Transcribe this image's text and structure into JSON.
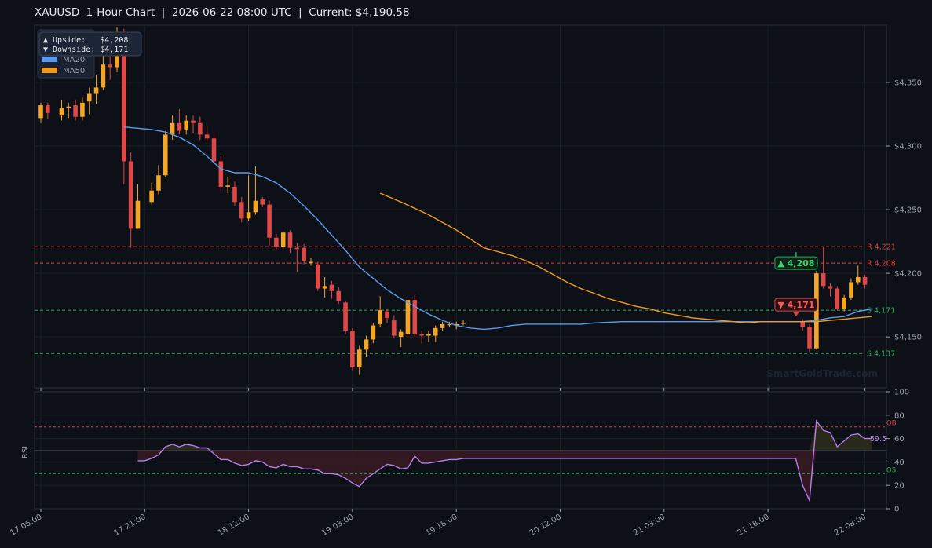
{
  "title": "XAUUSD  1-Hour Chart  |  2026-06-22 08:00 UTC  |  Current: $4,190.58",
  "watermark": "SmartGoldTrade.com",
  "colors": {
    "background": "#0d1017",
    "up": "#f5a623",
    "down": "#e04848",
    "ma20": "#5a9bf0",
    "ma50": "#f29a1c",
    "resistance": "#d9443f",
    "support": "#22b15a",
    "rsi": "#b77fe8"
  },
  "info_box": {
    "upside": "▲ Upside:   $4,208",
    "downside": "▼ Downside: $4,171"
  },
  "chart_data": [
    {
      "type": "candlestick",
      "y_unit": "USD",
      "ylim": [
        4110,
        4395
      ],
      "x_tick_labels": [
        "17 06:00",
        "17 21:00",
        "18 12:00",
        "19 03:00",
        "19 18:00",
        "20 12:00",
        "21 03:00",
        "21 18:00",
        "22 08:00"
      ],
      "y_ticks": [
        4150,
        4200,
        4250,
        4300,
        4350
      ],
      "y_tick_labels": [
        "$4,150",
        "$4,200",
        "$4,250",
        "$4,300",
        "$4,350"
      ],
      "legend": [
        {
          "name": "MA20",
          "color": "#5a9bf0"
        },
        {
          "name": "MA50",
          "color": "#f29a1c"
        }
      ],
      "legend_position": "top-left",
      "levels": [
        {
          "label": "R 4,221",
          "value": 4221,
          "kind": "resistance"
        },
        {
          "label": "R 4,208",
          "value": 4208,
          "kind": "resistance"
        },
        {
          "label": "S 4,171",
          "value": 4171,
          "kind": "support"
        },
        {
          "label": "S 4,137",
          "value": 4137,
          "kind": "support"
        }
      ],
      "target_up": {
        "label": "▲ 4,208",
        "value": 4208
      },
      "target_down": {
        "label": "▼ 4,171",
        "value": 4171
      },
      "candles": [
        {
          "i": 0,
          "o": 4322,
          "c": 4332,
          "h": 4334,
          "l": 4318
        },
        {
          "i": 1,
          "o": 4332,
          "c": 4326,
          "h": 4334,
          "l": 4321
        },
        {
          "i": 3,
          "o": 4324,
          "c": 4330,
          "h": 4336,
          "l": 4320
        },
        {
          "i": 4,
          "o": 4330,
          "c": 4331,
          "h": 4334,
          "l": 4322
        },
        {
          "i": 5,
          "o": 4332,
          "c": 4323,
          "h": 4336,
          "l": 4320
        },
        {
          "i": 6,
          "o": 4323,
          "c": 4334,
          "h": 4338,
          "l": 4320
        },
        {
          "i": 7,
          "o": 4335,
          "c": 4341,
          "h": 4346,
          "l": 4325
        },
        {
          "i": 8,
          "o": 4341,
          "c": 4346,
          "h": 4356,
          "l": 4333
        },
        {
          "i": 9,
          "o": 4346,
          "c": 4364,
          "h": 4378,
          "l": 4344
        },
        {
          "i": 10,
          "o": 4364,
          "c": 4362,
          "h": 4372,
          "l": 4352
        },
        {
          "i": 11,
          "o": 4362,
          "c": 4380,
          "h": 4393,
          "l": 4358
        },
        {
          "i": 12,
          "o": 4388,
          "c": 4288,
          "h": 4392,
          "l": 4270
        },
        {
          "i": 13,
          "o": 4288,
          "c": 4235,
          "h": 4295,
          "l": 4220
        },
        {
          "i": 14,
          "o": 4235,
          "c": 4257,
          "h": 4270,
          "l": 4235
        },
        {
          "i": 16,
          "o": 4256,
          "c": 4265,
          "h": 4271,
          "l": 4254
        },
        {
          "i": 17,
          "o": 4265,
          "c": 4277,
          "h": 4285,
          "l": 4262
        },
        {
          "i": 18,
          "o": 4277,
          "c": 4309,
          "h": 4312,
          "l": 4276
        },
        {
          "i": 19,
          "o": 4309,
          "c": 4318,
          "h": 4324,
          "l": 4305
        },
        {
          "i": 20,
          "o": 4318,
          "c": 4312,
          "h": 4329,
          "l": 4309
        },
        {
          "i": 21,
          "o": 4313,
          "c": 4320,
          "h": 4324,
          "l": 4309
        },
        {
          "i": 22,
          "o": 4320,
          "c": 4318,
          "h": 4324,
          "l": 4310
        },
        {
          "i": 23,
          "o": 4318,
          "c": 4309,
          "h": 4323,
          "l": 4305
        },
        {
          "i": 24,
          "o": 4309,
          "c": 4306,
          "h": 4316,
          "l": 4304
        },
        {
          "i": 25,
          "o": 4306,
          "c": 4288,
          "h": 4311,
          "l": 4286
        },
        {
          "i": 26,
          "o": 4288,
          "c": 4268,
          "h": 4292,
          "l": 4265
        },
        {
          "i": 27,
          "o": 4268,
          "c": 4269,
          "h": 4276,
          "l": 4263
        },
        {
          "i": 28,
          "o": 4268,
          "c": 4256,
          "h": 4272,
          "l": 4253
        },
        {
          "i": 29,
          "o": 4256,
          "c": 4243,
          "h": 4260,
          "l": 4240
        },
        {
          "i": 30,
          "o": 4243,
          "c": 4248,
          "h": 4277,
          "l": 4241
        },
        {
          "i": 31,
          "o": 4248,
          "c": 4257,
          "h": 4284,
          "l": 4246
        },
        {
          "i": 32,
          "o": 4258,
          "c": 4254,
          "h": 4260,
          "l": 4252
        },
        {
          "i": 33,
          "o": 4254,
          "c": 4228,
          "h": 4257,
          "l": 4222
        },
        {
          "i": 34,
          "o": 4228,
          "c": 4221,
          "h": 4231,
          "l": 4218
        },
        {
          "i": 35,
          "o": 4221,
          "c": 4232,
          "h": 4233,
          "l": 4219
        },
        {
          "i": 36,
          "o": 4232,
          "c": 4220,
          "h": 4234,
          "l": 4216
        },
        {
          "i": 37,
          "o": 4220,
          "c": 4219,
          "h": 4224,
          "l": 4201
        },
        {
          "i": 38,
          "o": 4220,
          "c": 4210,
          "h": 4223,
          "l": 4207
        },
        {
          "i": 39,
          "o": 4208,
          "c": 4209,
          "h": 4212,
          "l": 4206
        },
        {
          "i": 40,
          "o": 4207,
          "c": 4188,
          "h": 4209,
          "l": 4186
        },
        {
          "i": 41,
          "o": 4188,
          "c": 4190,
          "h": 4197,
          "l": 4181
        },
        {
          "i": 42,
          "o": 4191,
          "c": 4186,
          "h": 4194,
          "l": 4180
        },
        {
          "i": 43,
          "o": 4186,
          "c": 4178,
          "h": 4189,
          "l": 4176
        },
        {
          "i": 44,
          "o": 4177,
          "c": 4155,
          "h": 4178,
          "l": 4152
        },
        {
          "i": 45,
          "o": 4155,
          "c": 4126,
          "h": 4157,
          "l": 4124
        },
        {
          "i": 46,
          "o": 4126,
          "c": 4140,
          "h": 4143,
          "l": 4120
        },
        {
          "i": 47,
          "o": 4140,
          "c": 4148,
          "h": 4151,
          "l": 4134
        },
        {
          "i": 48,
          "o": 4148,
          "c": 4159,
          "h": 4161,
          "l": 4145
        },
        {
          "i": 49,
          "o": 4160,
          "c": 4171,
          "h": 4182,
          "l": 4158
        },
        {
          "i": 50,
          "o": 4170,
          "c": 4165,
          "h": 4172,
          "l": 4161
        },
        {
          "i": 51,
          "o": 4163,
          "c": 4151,
          "h": 4167,
          "l": 4149
        },
        {
          "i": 52,
          "o": 4150,
          "c": 4154,
          "h": 4156,
          "l": 4142
        },
        {
          "i": 53,
          "o": 4152,
          "c": 4179,
          "h": 4181,
          "l": 4149
        },
        {
          "i": 54,
          "o": 4179,
          "c": 4152,
          "h": 4183,
          "l": 4150
        },
        {
          "i": 55,
          "o": 4152,
          "c": 4151,
          "h": 4155,
          "l": 4145
        },
        {
          "i": 56,
          "o": 4151,
          "c": 4152,
          "h": 4155,
          "l": 4146
        },
        {
          "i": 57,
          "o": 4151,
          "c": 4157,
          "h": 4159,
          "l": 4146
        },
        {
          "i": 58,
          "o": 4157,
          "c": 4160,
          "h": 4162,
          "l": 4155
        },
        {
          "i": 59,
          "o": 4160,
          "c": 4160,
          "h": 4162,
          "l": 4158
        },
        {
          "i": 60,
          "o": 4159,
          "c": 4160,
          "h": 4162,
          "l": 4156
        },
        {
          "i": 61,
          "o": 4161,
          "c": 4161,
          "h": 4163,
          "l": 4159
        },
        {
          "i": 110,
          "o": 4162,
          "c": 4158,
          "h": 4164,
          "l": 4155
        },
        {
          "i": 111,
          "o": 4158,
          "c": 4141,
          "h": 4160,
          "l": 4138
        },
        {
          "i": 112,
          "o": 4141,
          "c": 4200,
          "h": 4202,
          "l": 4140
        },
        {
          "i": 113,
          "o": 4200,
          "c": 4190,
          "h": 4221,
          "l": 4188
        },
        {
          "i": 114,
          "o": 4190,
          "c": 4188,
          "h": 4192,
          "l": 4182
        },
        {
          "i": 115,
          "o": 4188,
          "c": 4172,
          "h": 4190,
          "l": 4171
        },
        {
          "i": 116,
          "o": 4172,
          "c": 4181,
          "h": 4183,
          "l": 4170
        },
        {
          "i": 117,
          "o": 4181,
          "c": 4193,
          "h": 4196,
          "l": 4179
        },
        {
          "i": 118,
          "o": 4193,
          "c": 4197,
          "h": 4206,
          "l": 4191
        },
        {
          "i": 119,
          "o": 4197,
          "c": 4191,
          "h": 4199,
          "l": 4188
        }
      ],
      "ma20": [
        [
          12,
          4315
        ],
        [
          14,
          4314
        ],
        [
          16,
          4313
        ],
        [
          18,
          4311
        ],
        [
          20,
          4307
        ],
        [
          22,
          4301
        ],
        [
          24,
          4292
        ],
        [
          26,
          4282
        ],
        [
          28,
          4279
        ],
        [
          30,
          4279
        ],
        [
          32,
          4276
        ],
        [
          34,
          4271
        ],
        [
          36,
          4263
        ],
        [
          38,
          4253
        ],
        [
          40,
          4242
        ],
        [
          42,
          4230
        ],
        [
          44,
          4218
        ],
        [
          46,
          4205
        ],
        [
          48,
          4196
        ],
        [
          50,
          4187
        ],
        [
          52,
          4180
        ],
        [
          54,
          4174
        ],
        [
          56,
          4168
        ],
        [
          58,
          4163
        ],
        [
          60,
          4159
        ],
        [
          62,
          4157
        ],
        [
          64,
          4156
        ],
        [
          66,
          4157
        ],
        [
          68,
          4159
        ],
        [
          70,
          4160
        ],
        [
          72,
          4160
        ],
        [
          74,
          4160
        ],
        [
          76,
          4160
        ],
        [
          78,
          4160
        ],
        [
          80,
          4161
        ],
        [
          84,
          4162
        ],
        [
          90,
          4162
        ],
        [
          100,
          4162
        ],
        [
          110,
          4162
        ],
        [
          112,
          4163
        ],
        [
          114,
          4165
        ],
        [
          116,
          4166
        ],
        [
          118,
          4170
        ],
        [
          120,
          4172
        ]
      ],
      "ma50": [
        [
          49,
          4263
        ],
        [
          52,
          4256
        ],
        [
          56,
          4246
        ],
        [
          60,
          4234
        ],
        [
          62,
          4227
        ],
        [
          64,
          4220
        ],
        [
          66,
          4217
        ],
        [
          68,
          4214
        ],
        [
          70,
          4210
        ],
        [
          72,
          4205
        ],
        [
          74,
          4199
        ],
        [
          76,
          4193
        ],
        [
          78,
          4188
        ],
        [
          80,
          4184
        ],
        [
          82,
          4180
        ],
        [
          84,
          4177
        ],
        [
          86,
          4174
        ],
        [
          88,
          4172
        ],
        [
          90,
          4169
        ],
        [
          92,
          4167
        ],
        [
          94,
          4165
        ],
        [
          96,
          4164
        ],
        [
          98,
          4163
        ],
        [
          100,
          4162
        ],
        [
          102,
          4161
        ],
        [
          104,
          4162
        ],
        [
          106,
          4162
        ],
        [
          110,
          4162
        ],
        [
          112,
          4162
        ],
        [
          114,
          4163
        ],
        [
          116,
          4164
        ],
        [
          118,
          4165
        ],
        [
          120,
          4166
        ]
      ]
    },
    {
      "type": "line",
      "ylabel": "RSI",
      "ylim": [
        0,
        100
      ],
      "y_ticks": [
        0,
        20,
        40,
        60,
        80,
        100
      ],
      "overbought": {
        "label": "OB",
        "value": 70
      },
      "oversold": {
        "label": "OS",
        "value": 30
      },
      "midline": 50,
      "last_label": "59.5",
      "points": [
        [
          14,
          41
        ],
        [
          15,
          41
        ],
        [
          16,
          43
        ],
        [
          17,
          46
        ],
        [
          18,
          53
        ],
        [
          19,
          55
        ],
        [
          20,
          53
        ],
        [
          21,
          55
        ],
        [
          22,
          54
        ],
        [
          23,
          52
        ],
        [
          24,
          52
        ],
        [
          25,
          47
        ],
        [
          26,
          42
        ],
        [
          27,
          42
        ],
        [
          28,
          39
        ],
        [
          29,
          37
        ],
        [
          30,
          38
        ],
        [
          31,
          41
        ],
        [
          32,
          40
        ],
        [
          33,
          36
        ],
        [
          34,
          35
        ],
        [
          35,
          38
        ],
        [
          36,
          36
        ],
        [
          37,
          36
        ],
        [
          38,
          34
        ],
        [
          39,
          34
        ],
        [
          40,
          33
        ],
        [
          41,
          30
        ],
        [
          42,
          30
        ],
        [
          43,
          29
        ],
        [
          44,
          26
        ],
        [
          45,
          22
        ],
        [
          46,
          19
        ],
        [
          47,
          26
        ],
        [
          48,
          30
        ],
        [
          49,
          34
        ],
        [
          50,
          38
        ],
        [
          51,
          37
        ],
        [
          52,
          34
        ],
        [
          53,
          35
        ],
        [
          54,
          45
        ],
        [
          55,
          39
        ],
        [
          56,
          39
        ],
        [
          57,
          40
        ],
        [
          58,
          41
        ],
        [
          59,
          42
        ],
        [
          60,
          42
        ],
        [
          61,
          43
        ],
        [
          62,
          43
        ],
        [
          80,
          43
        ],
        [
          100,
          43
        ],
        [
          109,
          43
        ],
        [
          110,
          20
        ],
        [
          111,
          7
        ],
        [
          112,
          75
        ],
        [
          113,
          67
        ],
        [
          114,
          65
        ],
        [
          115,
          53
        ],
        [
          116,
          58
        ],
        [
          117,
          63
        ],
        [
          118,
          64
        ],
        [
          119,
          60
        ],
        [
          120,
          60
        ]
      ]
    }
  ]
}
